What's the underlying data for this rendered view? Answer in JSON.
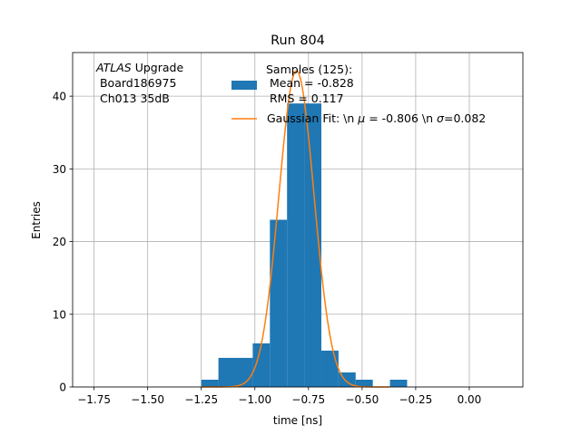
{
  "chart_data": {
    "type": "bar",
    "title": "Run 804",
    "xlabel": "time [ns]",
    "ylabel": "Entries",
    "xlim": [
      -1.85,
      0.25
    ],
    "ylim": [
      0,
      46
    ],
    "xticks": [
      -1.75,
      -1.5,
      -1.25,
      -1.0,
      -0.75,
      -0.5,
      -0.25,
      0.0
    ],
    "xtick_labels": [
      "−1.75",
      "−1.50",
      "−1.25",
      "−1.00",
      "−0.75",
      "−0.50",
      "−0.25",
      "0.00"
    ],
    "yticks": [
      0,
      10,
      20,
      30,
      40
    ],
    "ytick_labels": [
      "0",
      "10",
      "20",
      "30",
      "40"
    ],
    "grid": true,
    "legend_position": "top-center",
    "bin_edges": [
      -1.25,
      -1.17,
      -1.09,
      -1.01,
      -0.93,
      -0.85,
      -0.77,
      -0.69,
      -0.61,
      -0.53,
      -0.45,
      -0.37,
      -0.29
    ],
    "counts": [
      1,
      4,
      4,
      6,
      23,
      39,
      39,
      5,
      2,
      1,
      0,
      1
    ],
    "gaussian_fit": {
      "mu": -0.806,
      "sigma": 0.082,
      "amplitude": 43.5
    },
    "colors": {
      "histogram": "#1f77b4",
      "fit": "#ff7f0e"
    },
    "annotation": {
      "italic": "ATLAS",
      "rest": " Upgrade",
      "line2": " Board186975",
      "line3": " Ch013 35dB"
    },
    "legend": {
      "hist_line1": "Samples (125):",
      "hist_line2": " Mean = -0.828",
      "hist_line3": " RMS = 0.117",
      "fit_prefix": "Gaussian Fit: \\n ",
      "fit_mu_symbol": "μ",
      "fit_mid": " = -0.806 \\n ",
      "fit_sigma_symbol": "σ",
      "fit_suffix": "=0.082"
    }
  }
}
